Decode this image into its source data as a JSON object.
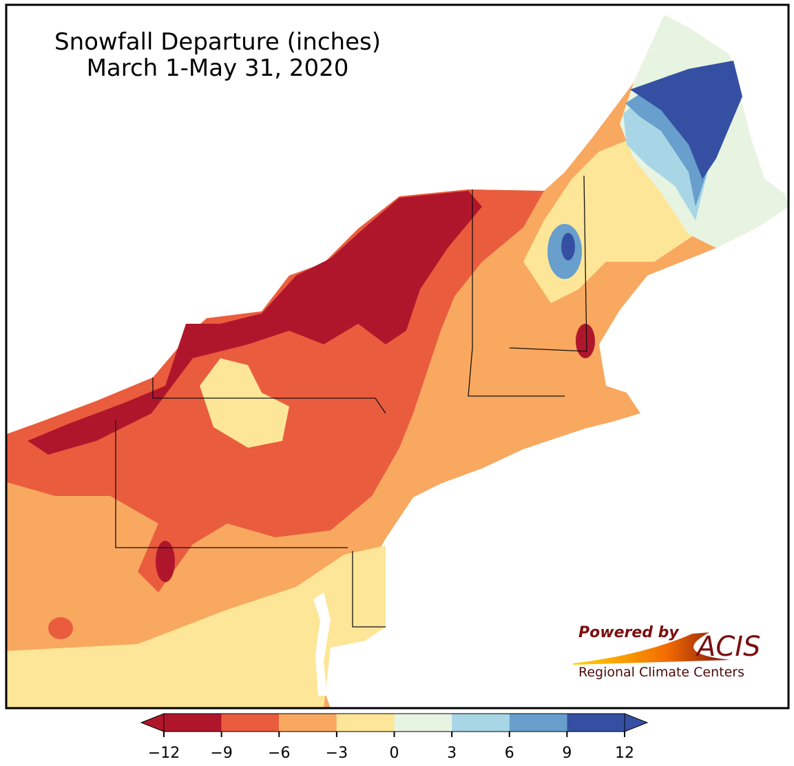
{
  "title": "Snowfall Departure (inches)",
  "subtitle": "March 1-May 31, 2020",
  "colorbar": {
    "lim": [
      -12,
      12
    ],
    "ticks": [
      {
        "value": -12,
        "label": "−12"
      },
      {
        "value": -9,
        "label": "−9"
      },
      {
        "value": -6,
        "label": "−6"
      },
      {
        "value": -3,
        "label": "−3"
      },
      0,
      3,
      6,
      9,
      12
    ],
    "colors": [
      "#b0162b",
      "#ea5c3e",
      "#f9a860",
      "#fee698",
      "#e8f4e2",
      "#a8d6e6",
      "#689fcc",
      "#3550a2"
    ]
  },
  "logo": {
    "line1": "Powered by",
    "brand": "ACIS",
    "line2": "Regional Climate Centers"
  }
}
